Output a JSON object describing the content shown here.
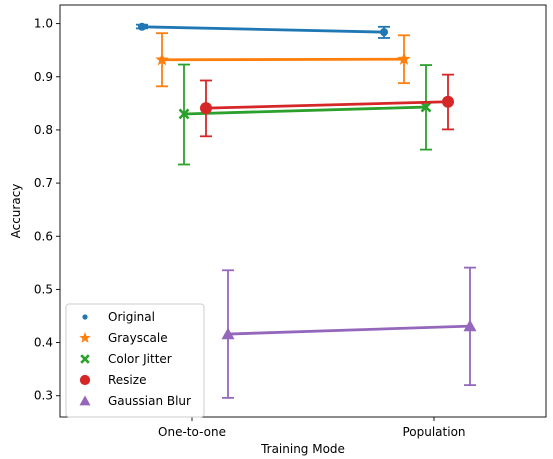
{
  "chart_data": {
    "type": "line",
    "title": "",
    "xlabel": "Training Mode",
    "ylabel": "Accuracy",
    "categories": [
      "One-to-one",
      "Population"
    ],
    "ylim": [
      0.26,
      1.035
    ],
    "yticks": [
      "0.3",
      "0.4",
      "0.5",
      "0.6",
      "0.7",
      "0.8",
      "0.9",
      "1.0"
    ],
    "grid": false,
    "legend_position": "lower-left",
    "series": [
      {
        "name": "Original",
        "color": "#1f77b4",
        "marker": "circle-small",
        "values": [
          0.994,
          0.984
        ],
        "err_low": [
          0.991,
          0.973
        ],
        "err_high": [
          0.998,
          0.994
        ]
      },
      {
        "name": "Grayscale",
        "color": "#ff7f0e",
        "marker": "star",
        "values": [
          0.932,
          0.933
        ],
        "err_low": [
          0.882,
          0.888
        ],
        "err_high": [
          0.982,
          0.978
        ]
      },
      {
        "name": "Color Jitter",
        "color": "#2ca02c",
        "marker": "x",
        "values": [
          0.83,
          0.843
        ],
        "err_low": [
          0.735,
          0.763
        ],
        "err_high": [
          0.923,
          0.922
        ]
      },
      {
        "name": "Resize",
        "color": "#d62728",
        "marker": "circle",
        "values": [
          0.841,
          0.853
        ],
        "err_low": [
          0.788,
          0.801
        ],
        "err_high": [
          0.893,
          0.904
        ]
      },
      {
        "name": "Gaussian Blur",
        "color": "#9467bd",
        "marker": "triangle",
        "values": [
          0.416,
          0.431
        ],
        "err_low": [
          0.296,
          0.32
        ],
        "err_high": [
          0.536,
          0.541
        ]
      }
    ]
  }
}
